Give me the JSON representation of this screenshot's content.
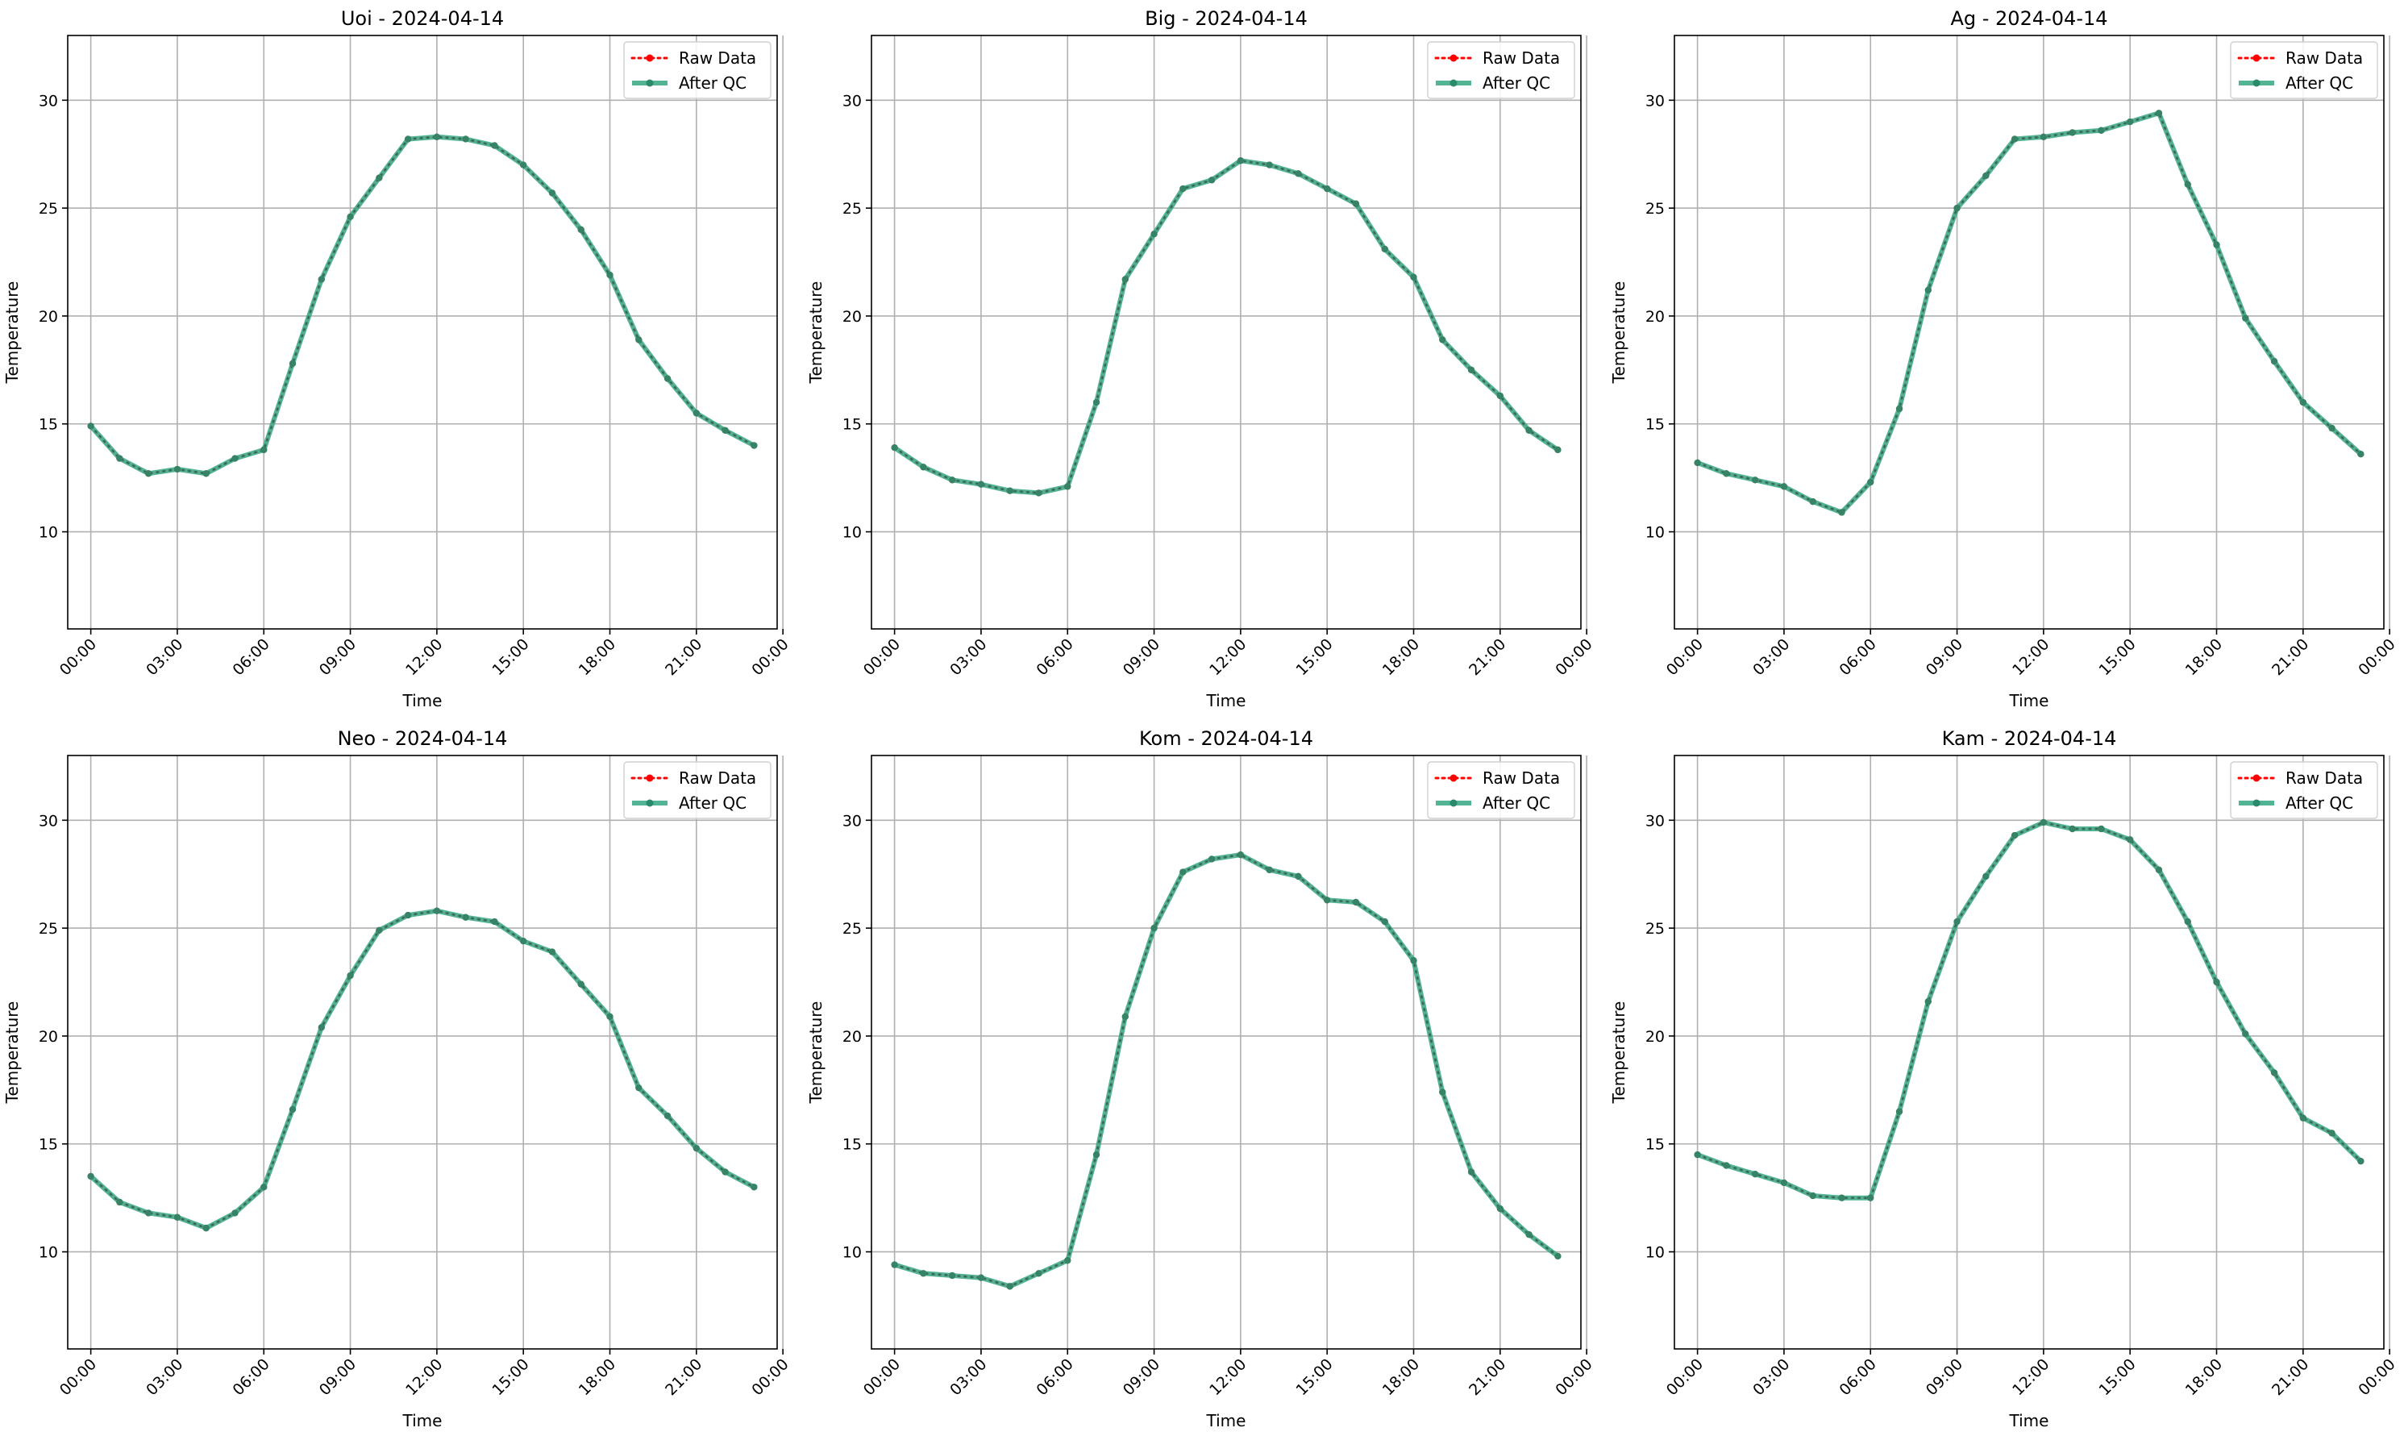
{
  "chart_data": [
    {
      "type": "line",
      "title": "Uoi - 2024-04-14",
      "xlabel": "Time",
      "ylabel": "Temperature",
      "ylim": [
        5.5,
        33
      ],
      "xlim": [
        -0.8,
        23.8
      ],
      "x_hours": [
        0,
        1,
        2,
        3,
        4,
        5,
        6,
        7,
        8,
        9,
        10,
        11,
        12,
        13,
        14,
        15,
        16,
        17,
        18,
        19,
        20,
        21,
        22,
        23
      ],
      "yticks": [
        10,
        15,
        20,
        25,
        30
      ],
      "xticks": [
        "00:00",
        "03:00",
        "06:00",
        "09:00",
        "12:00",
        "15:00",
        "18:00",
        "21:00",
        "00:00"
      ],
      "grid": true,
      "legend": "top-right",
      "series": [
        {
          "name": "Raw Data",
          "values": [
            14.9,
            13.4,
            12.7,
            12.9,
            12.7,
            13.4,
            13.8,
            17.8,
            21.7,
            24.6,
            26.4,
            28.2,
            28.3,
            28.2,
            27.9,
            27.0,
            25.7,
            24.0,
            21.9,
            18.9,
            17.1,
            15.5,
            14.7,
            14.0
          ]
        },
        {
          "name": "After QC",
          "values": [
            14.9,
            13.4,
            12.7,
            12.9,
            12.7,
            13.4,
            13.8,
            17.8,
            21.7,
            24.6,
            26.4,
            28.2,
            28.3,
            28.2,
            27.9,
            27.0,
            25.7,
            24.0,
            21.9,
            18.9,
            17.1,
            15.5,
            14.7,
            14.0
          ]
        }
      ]
    },
    {
      "type": "line",
      "title": "Big - 2024-04-14",
      "xlabel": "Time",
      "ylabel": "Temperature",
      "ylim": [
        5.5,
        33
      ],
      "xlim": [
        -0.8,
        23.8
      ],
      "x_hours": [
        0,
        1,
        2,
        3,
        4,
        5,
        6,
        7,
        8,
        9,
        10,
        11,
        12,
        13,
        14,
        15,
        16,
        17,
        18,
        19,
        20,
        21,
        22,
        23
      ],
      "yticks": [
        10,
        15,
        20,
        25,
        30
      ],
      "xticks": [
        "00:00",
        "03:00",
        "06:00",
        "09:00",
        "12:00",
        "15:00",
        "18:00",
        "21:00",
        "00:00"
      ],
      "grid": true,
      "legend": "top-right",
      "series": [
        {
          "name": "Raw Data",
          "values": [
            13.9,
            13.0,
            12.4,
            12.2,
            11.9,
            11.8,
            12.1,
            16.0,
            21.7,
            23.8,
            25.9,
            26.3,
            27.2,
            27.0,
            26.6,
            25.9,
            25.2,
            23.1,
            21.8,
            18.9,
            17.5,
            16.3,
            14.7,
            13.8
          ]
        },
        {
          "name": "After QC",
          "values": [
            13.9,
            13.0,
            12.4,
            12.2,
            11.9,
            11.8,
            12.1,
            16.0,
            21.7,
            23.8,
            25.9,
            26.3,
            27.2,
            27.0,
            26.6,
            25.9,
            25.2,
            23.1,
            21.8,
            18.9,
            17.5,
            16.3,
            14.7,
            13.8
          ]
        }
      ]
    },
    {
      "type": "line",
      "title": "Ag - 2024-04-14",
      "xlabel": "Time",
      "ylabel": "Temperature",
      "ylim": [
        5.5,
        33
      ],
      "xlim": [
        -0.8,
        23.8
      ],
      "x_hours": [
        0,
        1,
        2,
        3,
        4,
        5,
        6,
        7,
        8,
        9,
        10,
        11,
        12,
        13,
        14,
        15,
        16,
        17,
        18,
        19,
        20,
        21,
        22,
        23
      ],
      "yticks": [
        10,
        15,
        20,
        25,
        30
      ],
      "xticks": [
        "00:00",
        "03:00",
        "06:00",
        "09:00",
        "12:00",
        "15:00",
        "18:00",
        "21:00",
        "00:00"
      ],
      "grid": true,
      "legend": "top-right",
      "series": [
        {
          "name": "Raw Data",
          "values": [
            13.2,
            12.7,
            12.4,
            12.1,
            11.4,
            10.9,
            12.3,
            15.7,
            21.2,
            25.0,
            26.5,
            28.2,
            28.3,
            28.5,
            28.6,
            29.0,
            29.4,
            26.1,
            23.3,
            19.9,
            17.9,
            16.0,
            14.8,
            13.6
          ]
        },
        {
          "name": "After QC",
          "values": [
            13.2,
            12.7,
            12.4,
            12.1,
            11.4,
            10.9,
            12.3,
            15.7,
            21.2,
            25.0,
            26.5,
            28.2,
            28.3,
            28.5,
            28.6,
            29.0,
            29.4,
            26.1,
            23.3,
            19.9,
            17.9,
            16.0,
            14.8,
            13.6
          ]
        }
      ]
    },
    {
      "type": "line",
      "title": "Neo - 2024-04-14",
      "xlabel": "Time",
      "ylabel": "Temperature",
      "ylim": [
        5.5,
        33
      ],
      "xlim": [
        -0.8,
        23.8
      ],
      "x_hours": [
        0,
        1,
        2,
        3,
        4,
        5,
        6,
        7,
        8,
        9,
        10,
        11,
        12,
        13,
        14,
        15,
        16,
        17,
        18,
        19,
        20,
        21,
        22,
        23
      ],
      "yticks": [
        10,
        15,
        20,
        25,
        30
      ],
      "xticks": [
        "00:00",
        "03:00",
        "06:00",
        "09:00",
        "12:00",
        "15:00",
        "18:00",
        "21:00",
        "00:00"
      ],
      "grid": true,
      "legend": "top-right",
      "series": [
        {
          "name": "Raw Data",
          "values": [
            13.5,
            12.3,
            11.8,
            11.6,
            11.1,
            11.8,
            13.0,
            16.6,
            20.4,
            22.8,
            24.9,
            25.6,
            25.8,
            25.5,
            25.3,
            24.4,
            23.9,
            22.4,
            20.9,
            17.6,
            16.3,
            14.8,
            13.7,
            13.0
          ]
        },
        {
          "name": "After QC",
          "values": [
            13.5,
            12.3,
            11.8,
            11.6,
            11.1,
            11.8,
            13.0,
            16.6,
            20.4,
            22.8,
            24.9,
            25.6,
            25.8,
            25.5,
            25.3,
            24.4,
            23.9,
            22.4,
            20.9,
            17.6,
            16.3,
            14.8,
            13.7,
            13.0
          ]
        }
      ]
    },
    {
      "type": "line",
      "title": "Kom - 2024-04-14",
      "xlabel": "Time",
      "ylabel": "Temperature",
      "ylim": [
        5.5,
        33
      ],
      "xlim": [
        -0.8,
        23.8
      ],
      "x_hours": [
        0,
        1,
        2,
        3,
        4,
        5,
        6,
        7,
        8,
        9,
        10,
        11,
        12,
        13,
        14,
        15,
        16,
        17,
        18,
        19,
        20,
        21,
        22,
        23
      ],
      "yticks": [
        10,
        15,
        20,
        25,
        30
      ],
      "xticks": [
        "00:00",
        "03:00",
        "06:00",
        "09:00",
        "12:00",
        "15:00",
        "18:00",
        "21:00",
        "00:00"
      ],
      "grid": true,
      "legend": "top-right",
      "series": [
        {
          "name": "Raw Data",
          "values": [
            9.4,
            9.0,
            8.9,
            8.8,
            8.4,
            9.0,
            9.6,
            14.5,
            20.9,
            25.0,
            27.6,
            28.2,
            28.4,
            27.7,
            27.4,
            26.3,
            26.2,
            25.3,
            23.5,
            17.4,
            13.7,
            12.0,
            10.8,
            9.8
          ]
        },
        {
          "name": "After QC",
          "values": [
            9.4,
            9.0,
            8.9,
            8.8,
            8.4,
            9.0,
            9.6,
            14.5,
            20.9,
            25.0,
            27.6,
            28.2,
            28.4,
            27.7,
            27.4,
            26.3,
            26.2,
            25.3,
            23.5,
            17.4,
            13.7,
            12.0,
            10.8,
            9.8
          ]
        }
      ]
    },
    {
      "type": "line",
      "title": "Kam - 2024-04-14",
      "xlabel": "Time",
      "ylabel": "Temperature",
      "ylim": [
        5.5,
        33
      ],
      "xlim": [
        -0.8,
        23.8
      ],
      "x_hours": [
        0,
        1,
        2,
        3,
        4,
        5,
        6,
        7,
        8,
        9,
        10,
        11,
        12,
        13,
        14,
        15,
        16,
        17,
        18,
        19,
        20,
        21,
        22,
        23
      ],
      "yticks": [
        10,
        15,
        20,
        25,
        30
      ],
      "xticks": [
        "00:00",
        "03:00",
        "06:00",
        "09:00",
        "12:00",
        "15:00",
        "18:00",
        "21:00",
        "00:00"
      ],
      "grid": true,
      "legend": "top-right",
      "series": [
        {
          "name": "Raw Data",
          "values": [
            14.5,
            14.0,
            13.6,
            13.2,
            12.6,
            12.5,
            12.5,
            16.5,
            21.6,
            25.3,
            27.4,
            29.3,
            29.9,
            29.6,
            29.6,
            29.1,
            27.7,
            25.3,
            22.5,
            20.1,
            18.3,
            16.2,
            15.5,
            14.2
          ]
        },
        {
          "name": "After QC",
          "values": [
            14.5,
            14.0,
            13.6,
            13.2,
            12.6,
            12.5,
            12.5,
            16.5,
            21.6,
            25.3,
            27.4,
            29.3,
            29.9,
            29.6,
            29.6,
            29.1,
            27.7,
            25.3,
            22.5,
            20.1,
            18.3,
            16.2,
            15.5,
            14.2
          ]
        }
      ]
    }
  ],
  "colors": {
    "raw": "#ff0000",
    "after_qc": "#3aa886",
    "after_qc_marker": "#2c8a6c",
    "raw_marker": "#e00000"
  }
}
